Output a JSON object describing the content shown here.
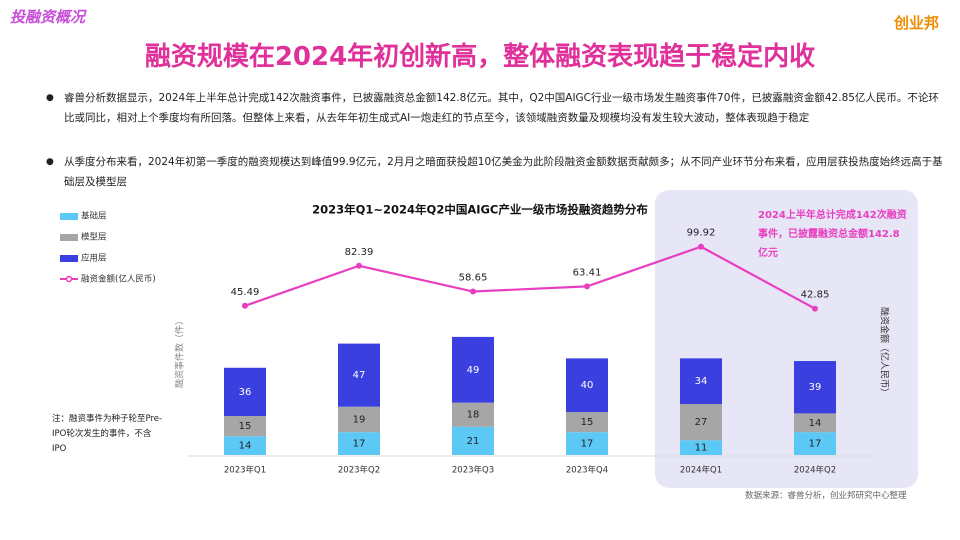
{
  "header": {
    "section": "投融资概况",
    "logo": "创业邦",
    "title": "融资规模在2024年初创新高，整体融资表现趋于稳定内收"
  },
  "bullets": [
    "睿兽分析数据显示，2024年上半年总计完成142次融资事件，已披露融资总金额142.8亿元。其中，Q2中国AIGC行业一级市场发生融资事件70件，已披露融资金额42.85亿人民币。不论环比或同比，相对上个季度均有所回落。但整体上来看，从去年年初生成式AI一炮走红的节点至今，该领域融资数量及规模均没有发生较大波动，整体表现趋于稳定",
    "从季度分布来看，2024年初第一季度的融资规模达到峰值99.9亿元，2月月之暗面获投超10亿美金为此阶段融资金额数据贡献颇多；从不同产业环节分布来看，应用层获投热度始终远高于基础层及模型层"
  ],
  "chart_data": {
    "type": "stacked-bar-line",
    "title": "2023年Q1~2024年Q2中国AIGC产业一级市场投融资趋势分布",
    "y_label": "融资事件数（件）",
    "y2_label": "融资金额（亿人民币）",
    "annotation": "2024上半年总计完成142次融资事件，已披露融资总金额142.8亿元",
    "categories": [
      "2023年Q1",
      "2023年Q2",
      "2023年Q3",
      "2023年Q4",
      "2024年Q1",
      "2024年Q2"
    ],
    "series": [
      {
        "name": "基础层",
        "color": "#5bc8f5",
        "values": [
          14,
          17,
          21,
          17,
          11,
          17
        ]
      },
      {
        "name": "模型层",
        "color": "#a6a6a6",
        "values": [
          15,
          19,
          18,
          15,
          27,
          14
        ]
      },
      {
        "name": "应用层",
        "color": "#3a3fe0",
        "values": [
          36,
          47,
          49,
          40,
          34,
          39
        ]
      },
      {
        "name": "融资金额(亿人民币)",
        "color": "#e83fc0",
        "axis": "y2",
        "type": "line",
        "values": [
          45.49,
          82.39,
          58.65,
          63.41,
          99.92,
          42.85
        ]
      }
    ],
    "ylim": [
      0,
      190
    ],
    "y2lim": [
      -92,
      143
    ],
    "legend": "left"
  },
  "note": "注：融资事件为种子轮至Pre-IPO轮次发生的事件，不含IPO",
  "source": "数据来源：睿兽分析，创业邦研究中心整理"
}
